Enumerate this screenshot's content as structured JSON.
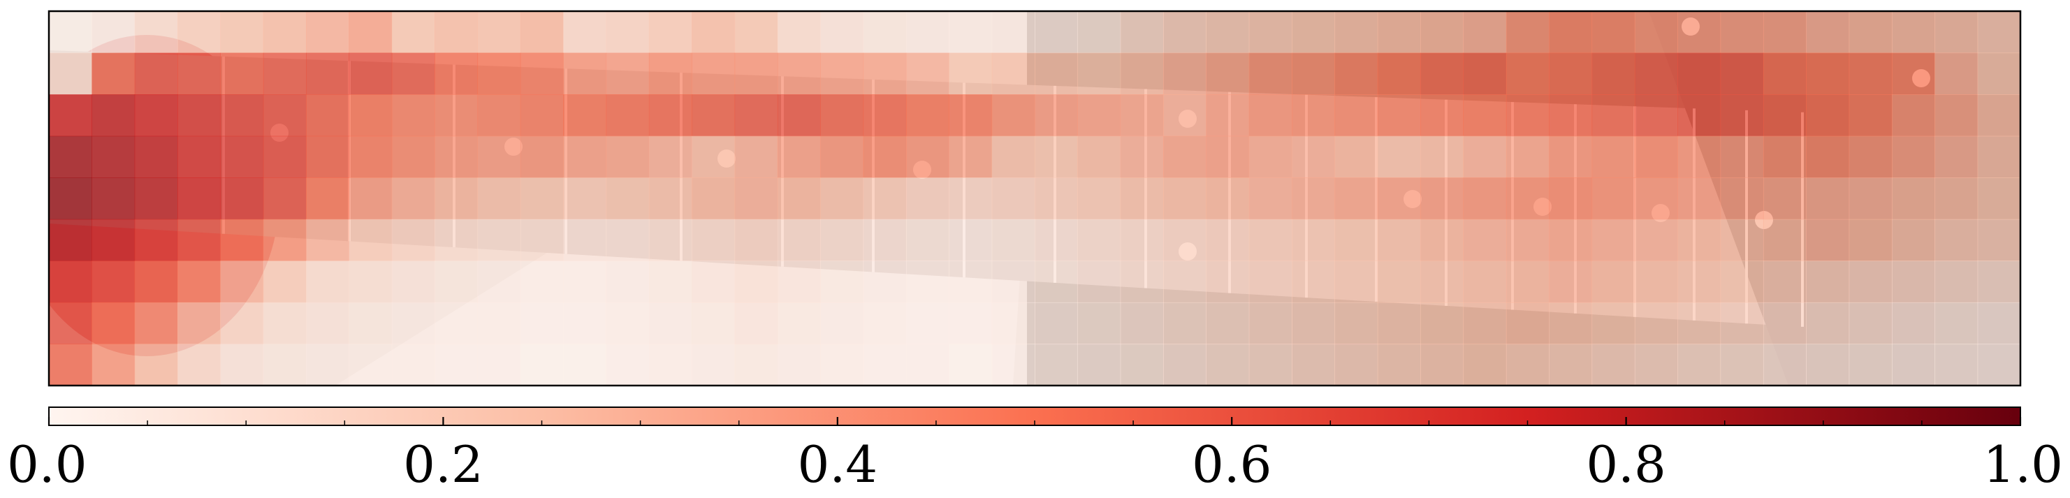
{
  "chart_data": {
    "type": "heatmap",
    "title": "",
    "xlabel": "",
    "ylabel": "",
    "grid": false,
    "background_image": "guitar-fretboard-photo",
    "overlay": {
      "cols": 46,
      "rows": 9,
      "colormap": "Reds",
      "colormap_colors": [
        "#fff5f0",
        "#fcbea5",
        "#fb7050",
        "#d32020",
        "#67000d"
      ],
      "overlay_alpha": 0.75,
      "values": [
        [
          0.02,
          0.05,
          0.12,
          0.18,
          0.22,
          0.26,
          0.3,
          0.35,
          0.22,
          0.26,
          0.24,
          0.28,
          0.14,
          0.16,
          0.2,
          0.26,
          0.22,
          0.12,
          0.08,
          0.06,
          0.05,
          0.04,
          0.05,
          0.05,
          0.06,
          0.12,
          0.16,
          0.18,
          0.2,
          0.22,
          0.24,
          0.26,
          0.28,
          0.3,
          0.4,
          0.45,
          0.44,
          0.4,
          0.38,
          0.36,
          0.35,
          0.3,
          0.28,
          0.26,
          0.24,
          0.2
        ],
        [
          0.12,
          0.55,
          0.62,
          0.6,
          0.56,
          0.58,
          0.6,
          0.62,
          0.58,
          0.52,
          0.5,
          0.48,
          0.4,
          0.38,
          0.42,
          0.4,
          0.4,
          0.38,
          0.36,
          0.34,
          0.3,
          0.22,
          0.24,
          0.24,
          0.22,
          0.26,
          0.3,
          0.34,
          0.4,
          0.42,
          0.46,
          0.5,
          0.54,
          0.56,
          0.5,
          0.52,
          0.56,
          0.58,
          0.6,
          0.58,
          0.52,
          0.5,
          0.48,
          0.46,
          0.3,
          0.22
        ],
        [
          0.75,
          0.78,
          0.74,
          0.7,
          0.66,
          0.62,
          0.56,
          0.5,
          0.46,
          0.44,
          0.46,
          0.48,
          0.5,
          0.52,
          0.54,
          0.56,
          0.58,
          0.6,
          0.56,
          0.54,
          0.5,
          0.48,
          0.42,
          0.38,
          0.36,
          0.34,
          0.3,
          0.36,
          0.4,
          0.42,
          0.44,
          0.46,
          0.48,
          0.5,
          0.52,
          0.54,
          0.56,
          0.58,
          0.6,
          0.58,
          0.56,
          0.52,
          0.48,
          0.4,
          0.34,
          0.26
        ],
        [
          0.85,
          0.82,
          0.78,
          0.72,
          0.68,
          0.64,
          0.56,
          0.48,
          0.44,
          0.4,
          0.38,
          0.4,
          0.36,
          0.34,
          0.3,
          0.26,
          0.3,
          0.36,
          0.4,
          0.44,
          0.4,
          0.34,
          0.24,
          0.22,
          0.26,
          0.3,
          0.34,
          0.36,
          0.32,
          0.3,
          0.28,
          0.24,
          0.26,
          0.3,
          0.34,
          0.4,
          0.42,
          0.44,
          0.4,
          0.38,
          0.42,
          0.44,
          0.4,
          0.36,
          0.3,
          0.24
        ],
        [
          0.88,
          0.84,
          0.8,
          0.74,
          0.7,
          0.62,
          0.5,
          0.38,
          0.32,
          0.28,
          0.24,
          0.22,
          0.2,
          0.22,
          0.24,
          0.28,
          0.3,
          0.28,
          0.24,
          0.2,
          0.16,
          0.14,
          0.16,
          0.18,
          0.2,
          0.24,
          0.26,
          0.28,
          0.3,
          0.32,
          0.34,
          0.36,
          0.38,
          0.4,
          0.42,
          0.44,
          0.42,
          0.4,
          0.38,
          0.36,
          0.34,
          0.32,
          0.3,
          0.28,
          0.26,
          0.22
        ],
        [
          0.82,
          0.78,
          0.7,
          0.62,
          0.52,
          0.42,
          0.3,
          0.2,
          0.16,
          0.12,
          0.1,
          0.1,
          0.08,
          0.08,
          0.1,
          0.12,
          0.14,
          0.12,
          0.1,
          0.08,
          0.06,
          0.05,
          0.06,
          0.08,
          0.1,
          0.12,
          0.14,
          0.16,
          0.18,
          0.2,
          0.22,
          0.24,
          0.28,
          0.3,
          0.32,
          0.34,
          0.32,
          0.3,
          0.28,
          0.26,
          0.28,
          0.3,
          0.28,
          0.24,
          0.2,
          0.18
        ],
        [
          0.7,
          0.64,
          0.56,
          0.44,
          0.3,
          0.2,
          0.12,
          0.1,
          0.08,
          0.06,
          0.05,
          0.04,
          0.04,
          0.05,
          0.06,
          0.08,
          0.1,
          0.08,
          0.06,
          0.05,
          0.04,
          0.04,
          0.05,
          0.06,
          0.08,
          0.1,
          0.12,
          0.14,
          0.16,
          0.18,
          0.2,
          0.22,
          0.24,
          0.26,
          0.28,
          0.3,
          0.28,
          0.26,
          0.24,
          0.22,
          0.2,
          0.18,
          0.16,
          0.14,
          0.12,
          0.1
        ],
        [
          0.62,
          0.52,
          0.4,
          0.26,
          0.16,
          0.1,
          0.08,
          0.06,
          0.05,
          0.04,
          0.04,
          0.03,
          0.03,
          0.04,
          0.05,
          0.06,
          0.08,
          0.06,
          0.05,
          0.04,
          0.03,
          0.03,
          0.04,
          0.05,
          0.06,
          0.08,
          0.1,
          0.12,
          0.14,
          0.16,
          0.18,
          0.2,
          0.22,
          0.24,
          0.26,
          0.24,
          0.22,
          0.2,
          0.18,
          0.16,
          0.14,
          0.12,
          0.1,
          0.08,
          0.06,
          0.05
        ],
        [
          0.55,
          0.4,
          0.26,
          0.14,
          0.08,
          0.06,
          0.05,
          0.04,
          0.04,
          0.03,
          0.03,
          0.02,
          0.02,
          0.03,
          0.04,
          0.05,
          0.06,
          0.05,
          0.04,
          0.03,
          0.03,
          0.02,
          0.03,
          0.04,
          0.05,
          0.06,
          0.08,
          0.1,
          0.12,
          0.14,
          0.16,
          0.18,
          0.2,
          0.22,
          0.2,
          0.18,
          0.16,
          0.14,
          0.12,
          0.1,
          0.08,
          0.07,
          0.06,
          0.05,
          0.04,
          0.03
        ]
      ]
    },
    "colorbar": {
      "orientation": "horizontal",
      "range": [
        0.0,
        1.0
      ],
      "ticks": [
        {
          "value": 0.0,
          "label": "0.0"
        },
        {
          "value": 0.2,
          "label": "0.2"
        },
        {
          "value": 0.4,
          "label": "0.4"
        },
        {
          "value": 0.6,
          "label": "0.6"
        },
        {
          "value": 0.8,
          "label": "0.8"
        },
        {
          "value": 1.0,
          "label": "1.0"
        }
      ],
      "minor_step": 0.05
    }
  }
}
